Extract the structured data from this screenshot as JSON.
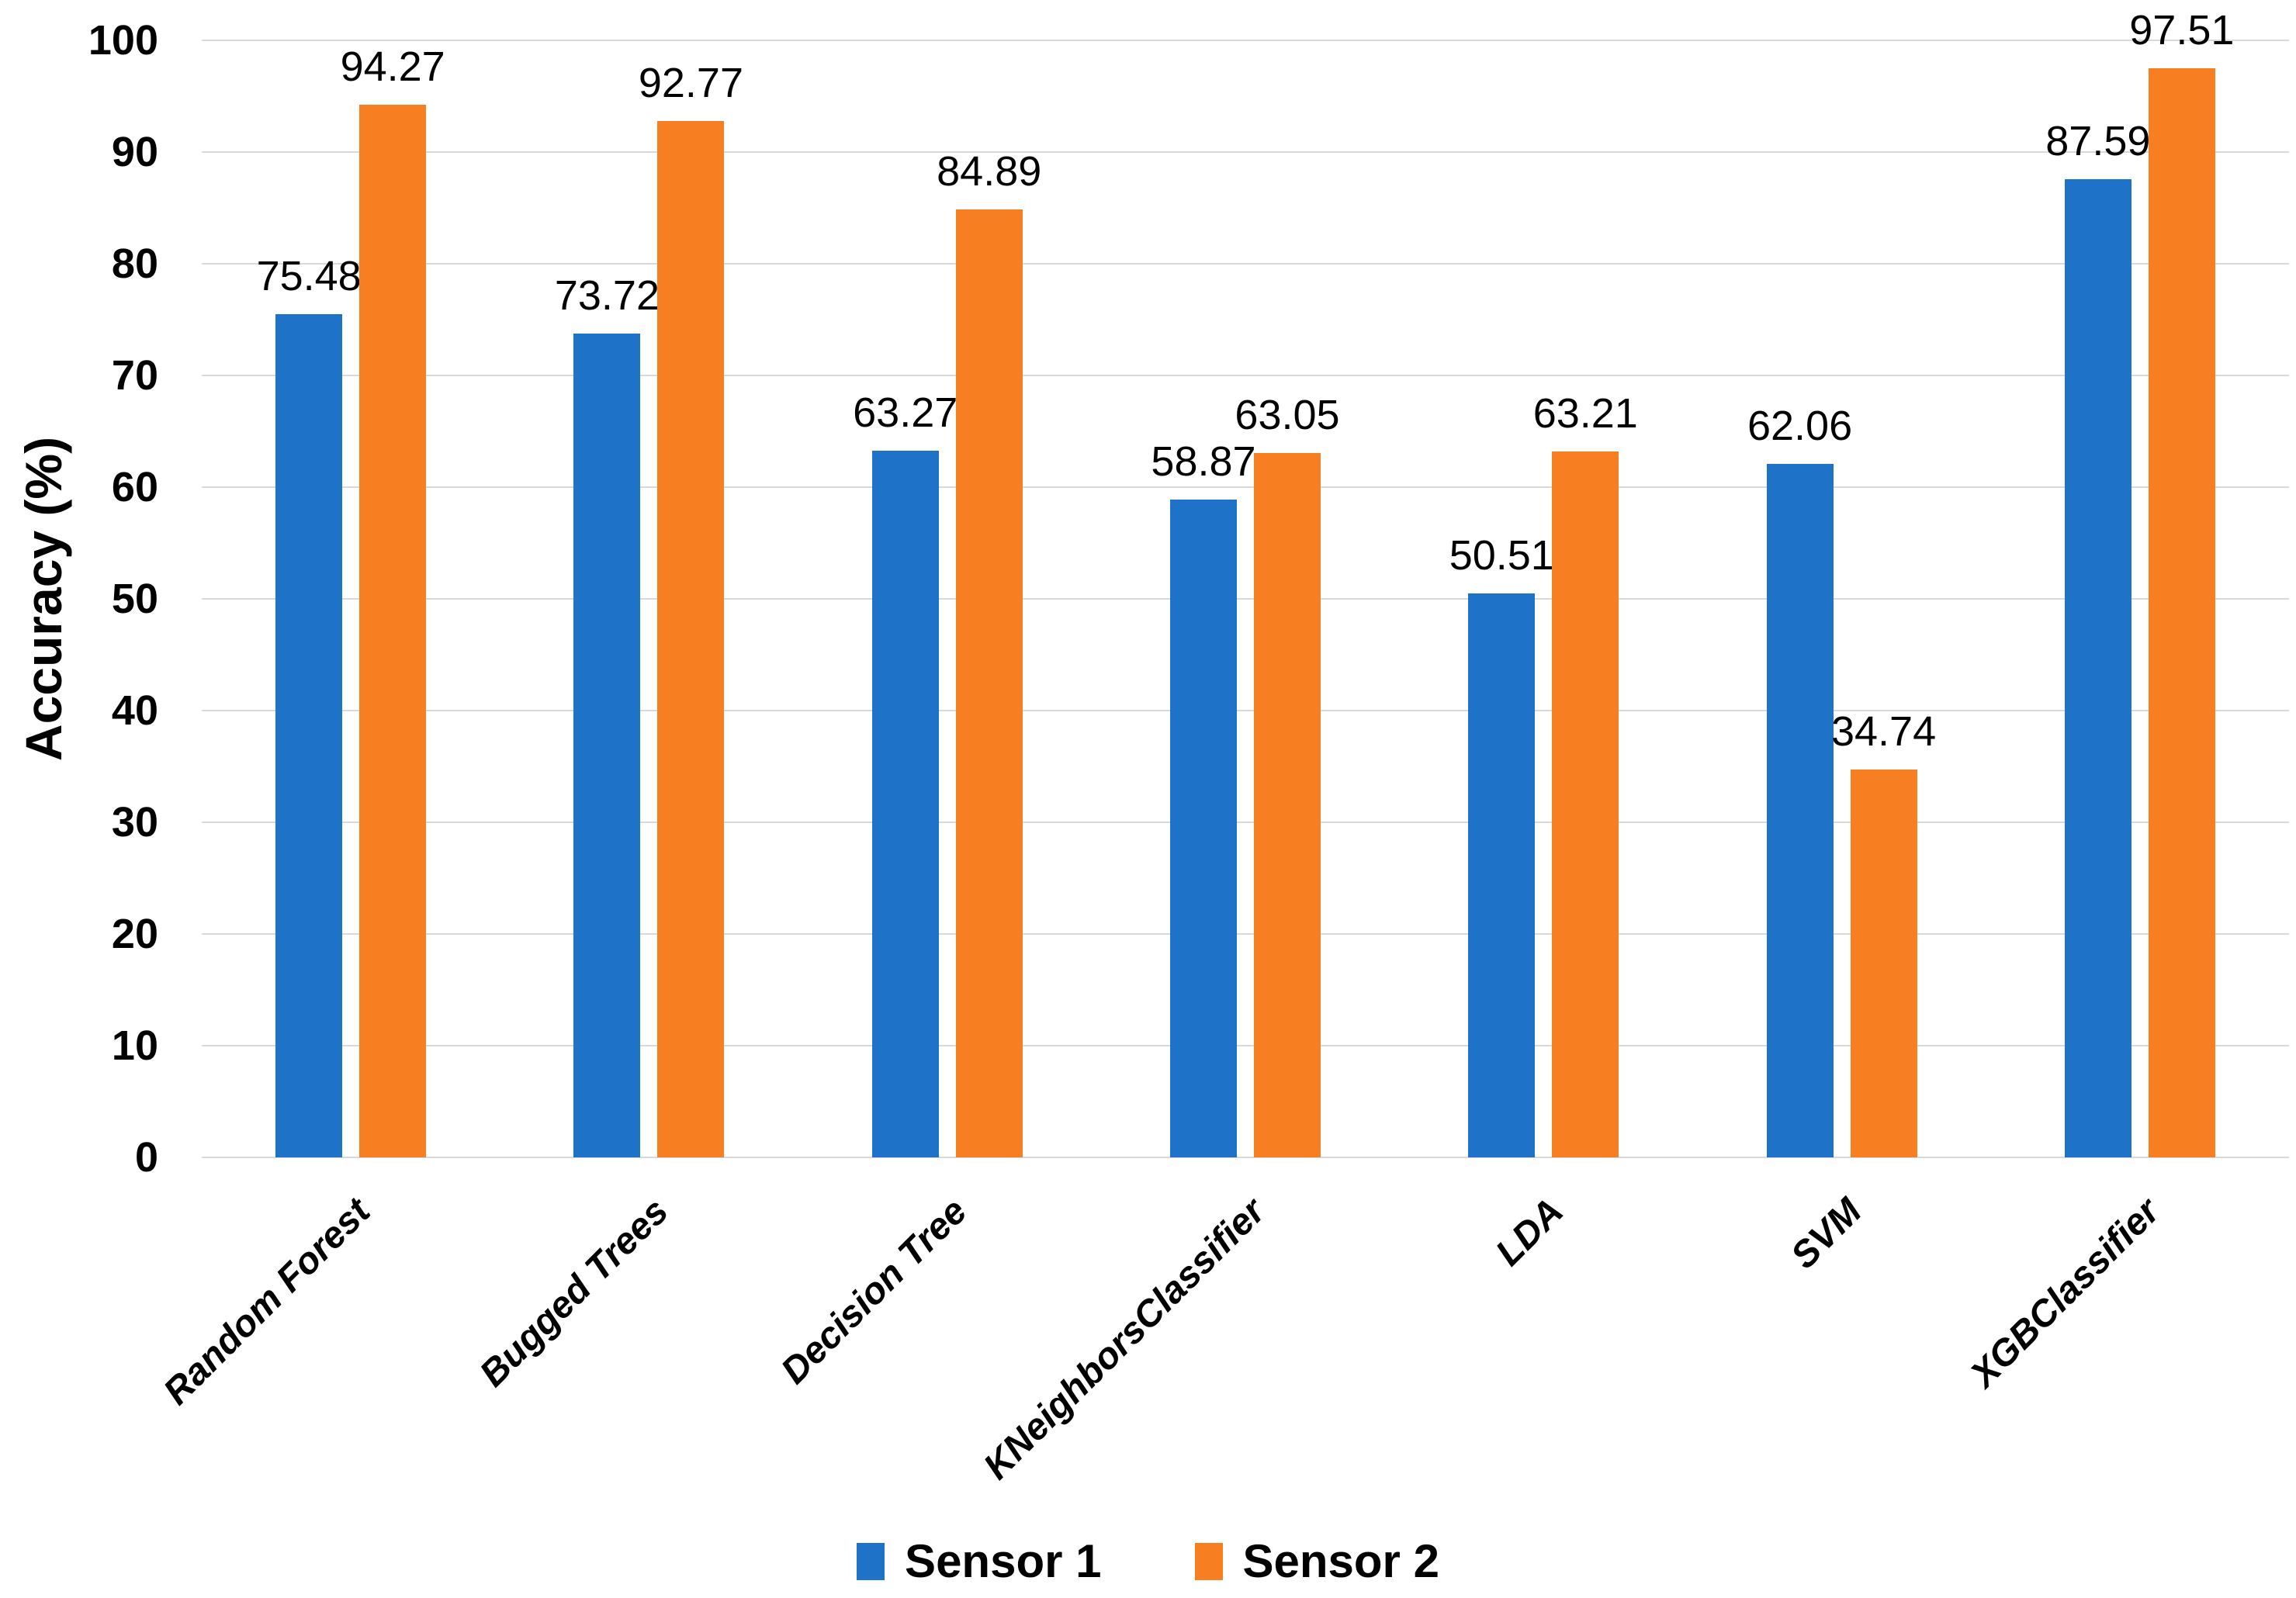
{
  "chart_data": {
    "type": "bar",
    "ylabel": "Accuracy (%)",
    "categories": [
      "Random Forest",
      "Bugged Trees",
      "Decision Tree",
      "KNeighborsClassifier",
      "LDA",
      "SVM",
      "XGBClassifier"
    ],
    "series": [
      {
        "name": "Sensor 1",
        "color": "#1e73c8",
        "values": [
          75.48,
          73.72,
          63.27,
          58.87,
          50.51,
          62.06,
          87.59
        ]
      },
      {
        "name": "Sensor 2",
        "color": "#f87e22",
        "values": [
          94.27,
          92.77,
          84.89,
          63.05,
          63.21,
          34.74,
          97.51
        ]
      }
    ],
    "ylim": [
      0,
      100
    ],
    "yticks": [
      0,
      10,
      20,
      30,
      40,
      50,
      60,
      70,
      80,
      90,
      100
    ],
    "grid": true,
    "gridline_color": "#d9d9d9",
    "legend_position": "bottom",
    "category_label_rotation_deg": -45
  }
}
